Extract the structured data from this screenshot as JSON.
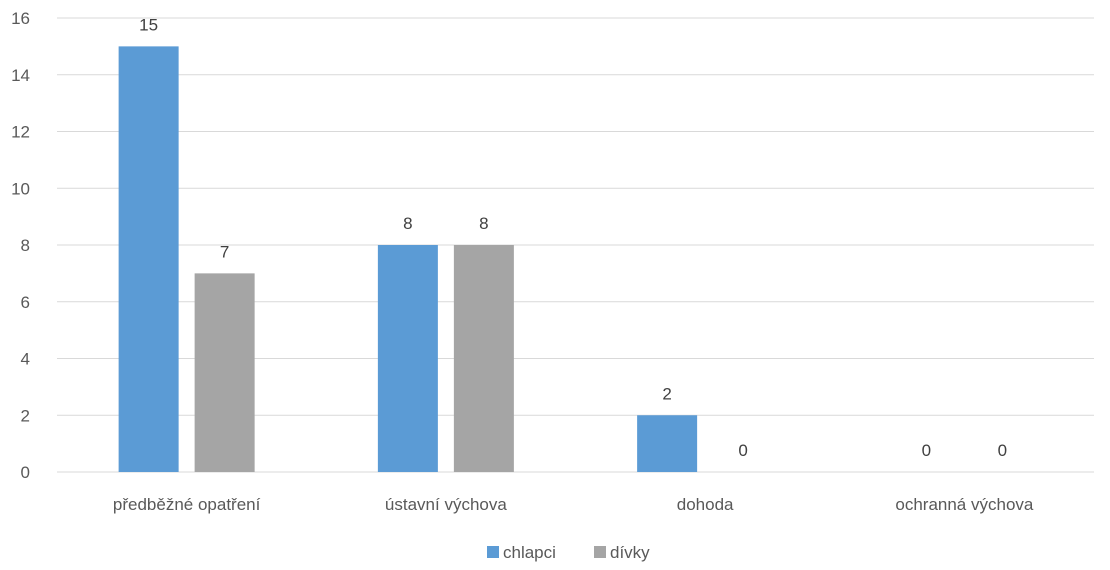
{
  "colors": {
    "chlapci": "#5b9bd5",
    "divky": "#a5a5a5",
    "grid": "#d9d9d9",
    "text": "#595959"
  },
  "chart_data": {
    "type": "bar",
    "categories": [
      "předběžné opatření",
      "ústavní výchova",
      "dohoda",
      "ochranná výchova"
    ],
    "series": [
      {
        "name": "chlapci",
        "values": [
          15,
          8,
          2,
          0
        ]
      },
      {
        "name": "dívky",
        "values": [
          7,
          8,
          0,
          0
        ]
      }
    ],
    "ylim": [
      0,
      16
    ],
    "yticks": [
      0,
      2,
      4,
      6,
      8,
      10,
      12,
      14,
      16
    ],
    "grid": true,
    "data_labels": true,
    "legend_position": "bottom"
  }
}
